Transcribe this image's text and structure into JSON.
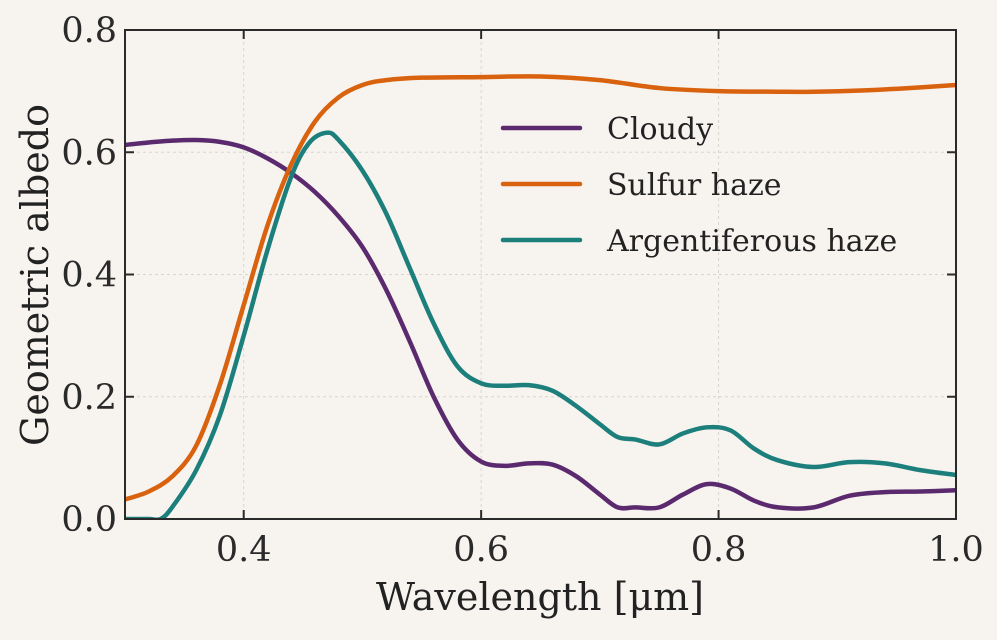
{
  "chart_data": {
    "type": "line",
    "title": "",
    "xlabel": "Wavelength [μm]",
    "ylabel": "Geometric albedo",
    "xlim": [
      0.3,
      1.0
    ],
    "ylim": [
      0.0,
      0.8
    ],
    "xticks": [
      "0.4",
      "0.6",
      "0.8",
      "1.0"
    ],
    "yticks": [
      "0.0",
      "0.2",
      "0.4",
      "0.6",
      "0.8"
    ],
    "grid": true,
    "legend_position": "top-right",
    "series": [
      {
        "name": "Cloudy",
        "color": "#5b2a6e",
        "x": [
          0.3,
          0.32,
          0.34,
          0.36,
          0.38,
          0.4,
          0.42,
          0.44,
          0.46,
          0.48,
          0.5,
          0.52,
          0.54,
          0.56,
          0.58,
          0.6,
          0.62,
          0.64,
          0.66,
          0.68,
          0.7,
          0.715,
          0.73,
          0.75,
          0.77,
          0.79,
          0.81,
          0.83,
          0.85,
          0.88,
          0.91,
          0.94,
          0.97,
          1.0
        ],
        "y": [
          0.612,
          0.616,
          0.619,
          0.62,
          0.617,
          0.608,
          0.59,
          0.566,
          0.535,
          0.495,
          0.445,
          0.375,
          0.29,
          0.2,
          0.13,
          0.094,
          0.087,
          0.091,
          0.089,
          0.07,
          0.04,
          0.019,
          0.019,
          0.019,
          0.04,
          0.057,
          0.05,
          0.03,
          0.019,
          0.019,
          0.038,
          0.044,
          0.045,
          0.047
        ]
      },
      {
        "name": "Sulfur haze",
        "color": "#d9620f",
        "x": [
          0.3,
          0.32,
          0.34,
          0.36,
          0.38,
          0.4,
          0.42,
          0.44,
          0.46,
          0.48,
          0.5,
          0.52,
          0.55,
          0.6,
          0.65,
          0.7,
          0.75,
          0.8,
          0.85,
          0.88,
          0.92,
          0.96,
          1.0
        ],
        "y": [
          0.032,
          0.045,
          0.07,
          0.12,
          0.22,
          0.35,
          0.48,
          0.58,
          0.65,
          0.69,
          0.71,
          0.718,
          0.722,
          0.723,
          0.724,
          0.718,
          0.705,
          0.7,
          0.699,
          0.699,
          0.701,
          0.705,
          0.71
        ]
      },
      {
        "name": "Argentiferous haze",
        "color": "#1c7f7c",
        "x": [
          0.3,
          0.32,
          0.33,
          0.34,
          0.36,
          0.38,
          0.4,
          0.42,
          0.44,
          0.455,
          0.47,
          0.48,
          0.5,
          0.52,
          0.54,
          0.56,
          0.58,
          0.6,
          0.62,
          0.64,
          0.66,
          0.68,
          0.7,
          0.715,
          0.73,
          0.75,
          0.77,
          0.79,
          0.81,
          0.83,
          0.85,
          0.88,
          0.91,
          0.94,
          0.97,
          1.0
        ],
        "y": [
          0.0,
          0.0,
          0.0,
          0.02,
          0.08,
          0.17,
          0.3,
          0.44,
          0.56,
          0.615,
          0.632,
          0.62,
          0.57,
          0.5,
          0.41,
          0.32,
          0.25,
          0.222,
          0.218,
          0.219,
          0.21,
          0.185,
          0.155,
          0.134,
          0.13,
          0.122,
          0.14,
          0.15,
          0.145,
          0.115,
          0.096,
          0.085,
          0.093,
          0.091,
          0.08,
          0.072
        ]
      }
    ]
  }
}
